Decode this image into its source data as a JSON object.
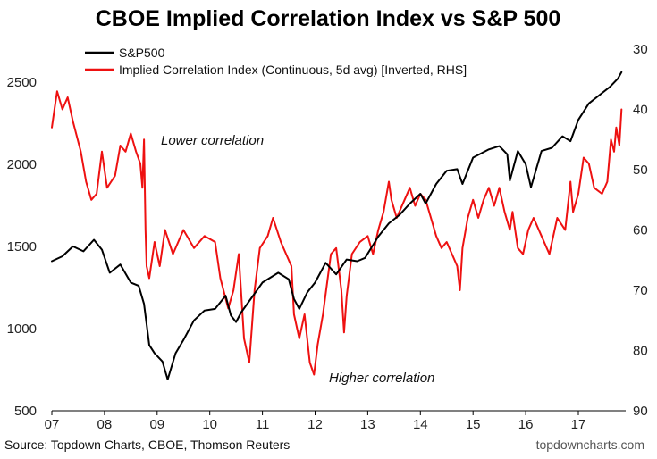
{
  "chart_data": {
    "type": "line",
    "title": "CBOE Implied Correlation Index vs S&P 500",
    "x_tick_labels": [
      "07",
      "08",
      "09",
      "10",
      "11",
      "12",
      "13",
      "14",
      "15",
      "16",
      "17"
    ],
    "xlim": [
      2007.0,
      2017.9
    ],
    "left_axis": {
      "ticks": [
        500,
        1000,
        1500,
        2000,
        2500
      ],
      "ylim": [
        500,
        2700
      ]
    },
    "right_axis": {
      "ticks": [
        30,
        40,
        50,
        60,
        70,
        80,
        90
      ],
      "ylim": [
        30,
        90
      ],
      "inverted": true
    },
    "annotations": [
      "Lower correlation",
      "Higher correlation"
    ],
    "series": [
      {
        "name": "S&P500",
        "axis": "left",
        "color": "#000000",
        "points": [
          [
            2007.0,
            1410
          ],
          [
            2007.2,
            1440
          ],
          [
            2007.4,
            1500
          ],
          [
            2007.6,
            1470
          ],
          [
            2007.8,
            1540
          ],
          [
            2007.95,
            1480
          ],
          [
            2008.1,
            1340
          ],
          [
            2008.3,
            1390
          ],
          [
            2008.5,
            1280
          ],
          [
            2008.65,
            1260
          ],
          [
            2008.75,
            1150
          ],
          [
            2008.85,
            900
          ],
          [
            2008.95,
            850
          ],
          [
            2009.1,
            800
          ],
          [
            2009.2,
            690
          ],
          [
            2009.35,
            850
          ],
          [
            2009.5,
            930
          ],
          [
            2009.7,
            1050
          ],
          [
            2009.9,
            1110
          ],
          [
            2010.1,
            1120
          ],
          [
            2010.3,
            1200
          ],
          [
            2010.4,
            1080
          ],
          [
            2010.5,
            1040
          ],
          [
            2010.6,
            1100
          ],
          [
            2010.8,
            1190
          ],
          [
            2011.0,
            1280
          ],
          [
            2011.3,
            1340
          ],
          [
            2011.5,
            1300
          ],
          [
            2011.6,
            1180
          ],
          [
            2011.7,
            1120
          ],
          [
            2011.85,
            1220
          ],
          [
            2012.0,
            1280
          ],
          [
            2012.2,
            1400
          ],
          [
            2012.4,
            1330
          ],
          [
            2012.6,
            1420
          ],
          [
            2012.8,
            1410
          ],
          [
            2012.95,
            1430
          ],
          [
            2013.2,
            1560
          ],
          [
            2013.4,
            1640
          ],
          [
            2013.6,
            1690
          ],
          [
            2013.8,
            1760
          ],
          [
            2014.0,
            1820
          ],
          [
            2014.1,
            1760
          ],
          [
            2014.3,
            1880
          ],
          [
            2014.5,
            1960
          ],
          [
            2014.7,
            1970
          ],
          [
            2014.8,
            1880
          ],
          [
            2015.0,
            2040
          ],
          [
            2015.3,
            2090
          ],
          [
            2015.5,
            2110
          ],
          [
            2015.65,
            2060
          ],
          [
            2015.7,
            1900
          ],
          [
            2015.85,
            2080
          ],
          [
            2016.0,
            2000
          ],
          [
            2016.1,
            1860
          ],
          [
            2016.3,
            2080
          ],
          [
            2016.5,
            2100
          ],
          [
            2016.7,
            2170
          ],
          [
            2016.85,
            2140
          ],
          [
            2017.0,
            2270
          ],
          [
            2017.2,
            2370
          ],
          [
            2017.4,
            2420
          ],
          [
            2017.6,
            2470
          ],
          [
            2017.75,
            2520
          ],
          [
            2017.82,
            2560
          ]
        ]
      },
      {
        "name": "Implied Correlation Index (Continuous, 5d avg) [Inverted, RHS]",
        "axis": "right",
        "color": "#ee1111",
        "points": [
          [
            2007.0,
            43
          ],
          [
            2007.05,
            40
          ],
          [
            2007.1,
            37
          ],
          [
            2007.2,
            40
          ],
          [
            2007.3,
            38
          ],
          [
            2007.4,
            42
          ],
          [
            2007.55,
            47
          ],
          [
            2007.65,
            52
          ],
          [
            2007.75,
            55
          ],
          [
            2007.85,
            54
          ],
          [
            2007.95,
            47
          ],
          [
            2008.05,
            53
          ],
          [
            2008.2,
            51
          ],
          [
            2008.3,
            46
          ],
          [
            2008.4,
            47
          ],
          [
            2008.5,
            44
          ],
          [
            2008.6,
            47
          ],
          [
            2008.68,
            49
          ],
          [
            2008.72,
            53
          ],
          [
            2008.75,
            45
          ],
          [
            2008.78,
            60
          ],
          [
            2008.8,
            66
          ],
          [
            2008.85,
            68
          ],
          [
            2008.95,
            62
          ],
          [
            2009.05,
            66
          ],
          [
            2009.15,
            60
          ],
          [
            2009.3,
            64
          ],
          [
            2009.5,
            60
          ],
          [
            2009.7,
            63
          ],
          [
            2009.9,
            61
          ],
          [
            2010.1,
            62
          ],
          [
            2010.2,
            68
          ],
          [
            2010.35,
            73
          ],
          [
            2010.45,
            70
          ],
          [
            2010.55,
            64
          ],
          [
            2010.65,
            78
          ],
          [
            2010.75,
            82
          ],
          [
            2010.85,
            70
          ],
          [
            2010.95,
            63
          ],
          [
            2011.1,
            61
          ],
          [
            2011.2,
            58
          ],
          [
            2011.35,
            62
          ],
          [
            2011.45,
            64
          ],
          [
            2011.55,
            66
          ],
          [
            2011.6,
            74
          ],
          [
            2011.7,
            78
          ],
          [
            2011.8,
            74
          ],
          [
            2011.9,
            82
          ],
          [
            2011.98,
            84
          ],
          [
            2012.05,
            79
          ],
          [
            2012.15,
            74
          ],
          [
            2012.3,
            64
          ],
          [
            2012.4,
            63
          ],
          [
            2012.5,
            70
          ],
          [
            2012.55,
            77
          ],
          [
            2012.6,
            71
          ],
          [
            2012.7,
            64
          ],
          [
            2012.85,
            62
          ],
          [
            2013.0,
            61
          ],
          [
            2013.1,
            64
          ],
          [
            2013.2,
            60
          ],
          [
            2013.3,
            57
          ],
          [
            2013.4,
            52
          ],
          [
            2013.45,
            55
          ],
          [
            2013.55,
            58
          ],
          [
            2013.7,
            55
          ],
          [
            2013.8,
            53
          ],
          [
            2013.9,
            56
          ],
          [
            2014.0,
            54
          ],
          [
            2014.1,
            55
          ],
          [
            2014.2,
            58
          ],
          [
            2014.3,
            61
          ],
          [
            2014.4,
            63
          ],
          [
            2014.5,
            62
          ],
          [
            2014.6,
            64
          ],
          [
            2014.7,
            66
          ],
          [
            2014.75,
            70
          ],
          [
            2014.8,
            63
          ],
          [
            2014.9,
            58
          ],
          [
            2015.0,
            55
          ],
          [
            2015.1,
            58
          ],
          [
            2015.2,
            55
          ],
          [
            2015.3,
            53
          ],
          [
            2015.4,
            56
          ],
          [
            2015.5,
            53
          ],
          [
            2015.6,
            57
          ],
          [
            2015.7,
            60
          ],
          [
            2015.75,
            57
          ],
          [
            2015.85,
            63
          ],
          [
            2015.95,
            64
          ],
          [
            2016.05,
            60
          ],
          [
            2016.15,
            58
          ],
          [
            2016.3,
            61
          ],
          [
            2016.45,
            64
          ],
          [
            2016.6,
            58
          ],
          [
            2016.75,
            60
          ],
          [
            2016.85,
            52
          ],
          [
            2016.9,
            57
          ],
          [
            2017.0,
            54
          ],
          [
            2017.1,
            48
          ],
          [
            2017.2,
            49
          ],
          [
            2017.3,
            53
          ],
          [
            2017.45,
            54
          ],
          [
            2017.55,
            52
          ],
          [
            2017.62,
            45
          ],
          [
            2017.68,
            47
          ],
          [
            2017.72,
            43
          ],
          [
            2017.78,
            46
          ],
          [
            2017.82,
            40
          ]
        ]
      }
    ]
  },
  "footer": {
    "source": "Source: Topdown Charts, CBOE, Thomson Reuters",
    "brand": "topdowncharts.com"
  }
}
